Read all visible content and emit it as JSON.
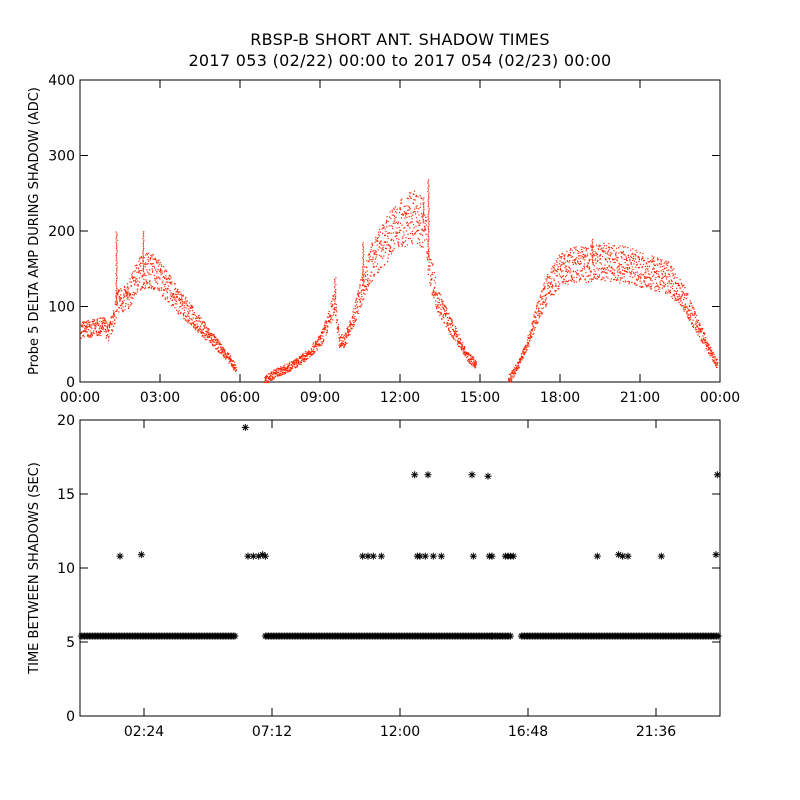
{
  "title_line1": "RBSP-B SHORT ANT. SHADOW TIMES",
  "title_line2": "2017 053 (02/22) 00:00 to 2017 054 (02/23) 00:00",
  "colors": {
    "top_series": "#ff2200",
    "bottom_series": "#000000",
    "axes": "#000000"
  },
  "chart_data": [
    {
      "type": "scatter",
      "ylabel": "Probe 5 DELTA AMP DURING SHADOW (ADC)",
      "xlabel": "",
      "x_unit": "hours",
      "xlim": [
        0,
        24
      ],
      "ylim": [
        0,
        400
      ],
      "x_tick_labels": [
        "00:00",
        "03:00",
        "06:00",
        "09:00",
        "12:00",
        "15:00",
        "18:00",
        "21:00",
        "00:00"
      ],
      "x_tick_values": [
        0,
        3,
        6,
        9,
        12,
        15,
        18,
        21,
        24
      ],
      "y_ticks": [
        0,
        100,
        200,
        300,
        400
      ],
      "series_color": "#ff2200",
      "envelope": {
        "x": [
          0,
          0.5,
          0.9,
          1.05,
          1.2,
          1.4,
          1.6,
          1.8,
          2.2,
          2.6,
          3.0,
          3.5,
          4.0,
          4.5,
          5.0,
          5.5,
          5.8,
          6.05,
          6.9,
          7.3,
          7.7,
          8.2,
          8.6,
          9.0,
          9.3,
          9.55,
          9.7,
          9.9,
          10.2,
          10.6,
          11.0,
          11.4,
          11.8,
          12.2,
          12.6,
          12.9,
          13.1,
          13.4,
          13.8,
          14.2,
          14.5,
          14.8,
          16.1,
          16.4,
          16.8,
          17.2,
          17.6,
          18.0,
          18.5,
          19.0,
          19.5,
          20.0,
          20.5,
          21.0,
          21.5,
          22.0,
          22.5,
          23.0,
          23.5,
          23.85
        ],
        "y": [
          70,
          72,
          75,
          65,
          80,
          110,
          108,
          115,
          145,
          150,
          140,
          115,
          95,
          75,
          55,
          35,
          20,
          8,
          2,
          12,
          18,
          28,
          40,
          55,
          80,
          110,
          55,
          55,
          80,
          130,
          165,
          185,
          205,
          215,
          220,
          210,
          150,
          110,
          80,
          55,
          35,
          25,
          5,
          22,
          55,
          100,
          130,
          148,
          155,
          158,
          160,
          158,
          155,
          150,
          145,
          140,
          120,
          85,
          50,
          25
        ]
      },
      "spikes": {
        "x": [
          1.35,
          1.75,
          2.35,
          9.55,
          10.6,
          12.85,
          13.05,
          19.2
        ],
        "y": [
          200,
          120,
          200,
          140,
          185,
          240,
          270,
          190
        ]
      }
    },
    {
      "type": "scatter",
      "ylabel": "TIME BETWEEN SHADOWS (SEC)",
      "xlabel": "",
      "x_unit": "hours",
      "xlim": [
        0,
        24
      ],
      "ylim": [
        0,
        20
      ],
      "x_tick_labels": [
        "02:24",
        "07:12",
        "12:00",
        "16:48",
        "21:36"
      ],
      "x_tick_values": [
        2.4,
        7.2,
        12.0,
        16.8,
        21.6
      ],
      "y_ticks": [
        0,
        5,
        10,
        15,
        20
      ],
      "marker": "asterisk",
      "series_color": "#000000",
      "baseline_value": 5.4,
      "baseline_segments": [
        [
          0.05,
          5.85
        ],
        [
          6.95,
          15.6
        ],
        [
          15.6,
          16.15
        ],
        [
          16.55,
          23.95
        ]
      ],
      "points": {
        "x": [
          1.5,
          2.3,
          6.3,
          6.5,
          6.7,
          6.85,
          6.95,
          10.6,
          10.8,
          11.0,
          11.3,
          12.55,
          12.65,
          12.75,
          12.95,
          13.05,
          13.25,
          13.55,
          14.7,
          14.75,
          15.3,
          15.35,
          15.45,
          15.95,
          16.05,
          16.15,
          16.25,
          19.4,
          20.2,
          20.35,
          20.55,
          21.8,
          23.85,
          23.9,
          6.2
        ],
        "y": [
          10.8,
          10.9,
          10.8,
          10.8,
          10.8,
          10.9,
          10.8,
          10.8,
          10.8,
          10.8,
          10.8,
          16.3,
          10.8,
          10.8,
          10.8,
          16.3,
          10.8,
          10.8,
          16.3,
          10.8,
          16.2,
          10.8,
          10.8,
          10.8,
          10.8,
          10.8,
          10.8,
          10.8,
          10.9,
          10.8,
          10.8,
          10.8,
          10.9,
          16.3,
          19.5
        ]
      },
      "isolated_low_points": {
        "x": [
          15.45
        ],
        "y": [
          5.4
        ]
      }
    }
  ]
}
